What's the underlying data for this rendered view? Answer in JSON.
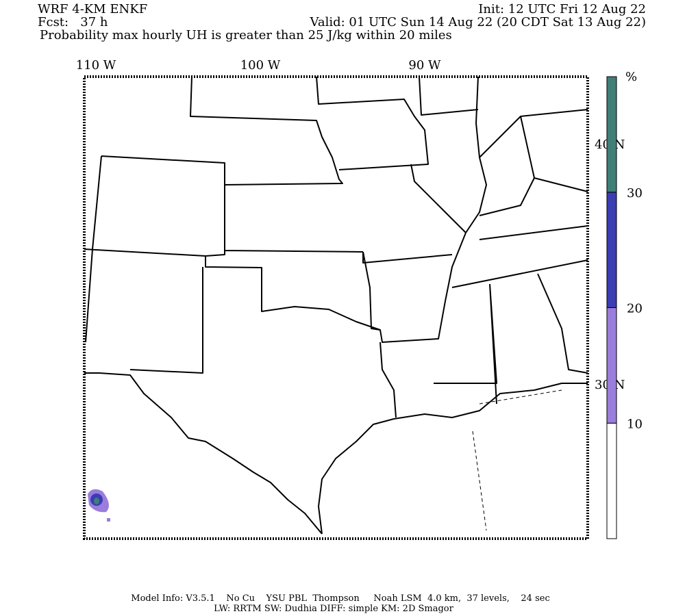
{
  "header": {
    "model": "WRF 4-KM ENKF",
    "forecast": "Fcst:   37 h",
    "init": "Init: 12 UTC Fri 12 Aug 22",
    "valid": "Valid: 01 UTC Sun 14 Aug 22 (20 CDT Sat 13 Aug 22)",
    "title": "Probability max hourly UH is greater than 25 J/kg within 20 miles"
  },
  "map": {
    "longitude_labels": [
      "110 W",
      "100 W",
      "90 W"
    ],
    "latitude_labels": [
      "40 N",
      "30 N"
    ]
  },
  "colorbar": {
    "unit": "%",
    "levels": [
      10,
      20,
      30
    ],
    "colors": [
      "#ffffff",
      "#9b7ddc",
      "#3b3db3",
      "#3f7f78"
    ]
  },
  "footer": {
    "line1": "Model Info: V3.5.1    No Cu    YSU PBL  Thompson     Noah LSM  4.0 km,  37 levels,    24 sec",
    "line2": "LW: RRTM SW: Dudhia  DIFF: simple KM: 2D Smagor"
  }
}
